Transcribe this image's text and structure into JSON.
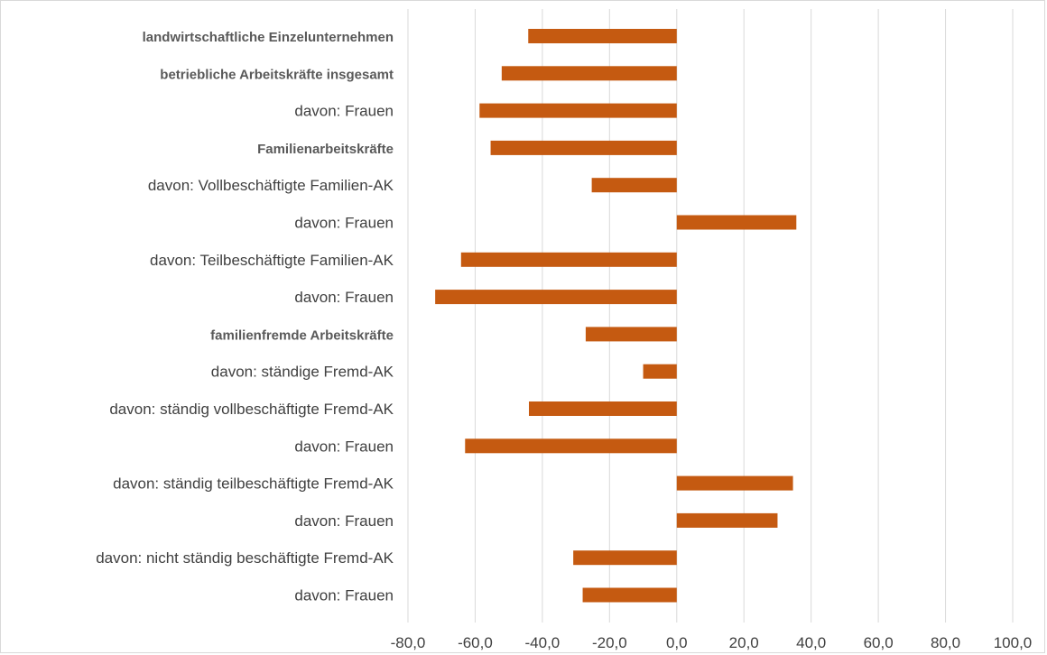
{
  "chart_data": {
    "type": "bar",
    "orientation": "horizontal",
    "title": "",
    "xlabel": "",
    "ylabel": "",
    "xlim": [
      -80,
      100
    ],
    "xticks": [
      -80,
      -60,
      -40,
      -20,
      0,
      20,
      40,
      60,
      80,
      100
    ],
    "xtick_labels": [
      "-80,0",
      "-60,0",
      "-40,0",
      "-20,0",
      "0,0",
      "20,0",
      "40,0",
      "60,0",
      "80,0",
      "100,0"
    ],
    "grid": true,
    "legend": "none",
    "bar_color": "#c55a11",
    "categories": [
      {
        "label": "landwirtschaftliche Einzelunternehmen",
        "bold": true
      },
      {
        "label": "betriebliche Arbeitskräfte insgesamt",
        "bold": true
      },
      {
        "label": "davon: Frauen",
        "bold": false
      },
      {
        "label": "Familienarbeitskräfte",
        "bold": true
      },
      {
        "label": "davon: Vollbeschäftigte Familien-AK",
        "bold": false
      },
      {
        "label": "davon: Frauen",
        "bold": false
      },
      {
        "label": "davon: Teilbeschäftigte Familien-AK",
        "bold": false
      },
      {
        "label": "davon: Frauen",
        "bold": false
      },
      {
        "label": "familienfremde Arbeitskräfte",
        "bold": true
      },
      {
        "label": "davon: ständige Fremd-AK",
        "bold": false
      },
      {
        "label": "davon: ständig vollbeschäftigte Fremd-AK",
        "bold": false
      },
      {
        "label": "davon: Frauen",
        "bold": false
      },
      {
        "label": "davon: ständig teilbeschäftigte Fremd-AK",
        "bold": false
      },
      {
        "label": "davon: Frauen",
        "bold": false
      },
      {
        "label": "davon: nicht ständig beschäftigte Fremd-AK",
        "bold": false
      },
      {
        "label": "davon: Frauen",
        "bold": false
      }
    ],
    "values": [
      -44.2,
      -52.1,
      -58.7,
      -55.4,
      -25.3,
      35.6,
      -64.2,
      -71.9,
      -27.1,
      -10.0,
      -44.0,
      -63.0,
      34.6,
      30.0,
      -30.8,
      -28.0
    ]
  }
}
